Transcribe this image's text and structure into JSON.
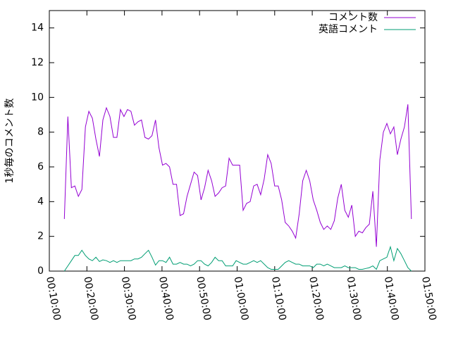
{
  "chart_data": {
    "type": "line",
    "ylabel": "1秒毎のコメント数",
    "xlim": [
      600,
      6600
    ],
    "xticks": [
      {
        "value": 600,
        "label": "00:10:00"
      },
      {
        "value": 1200,
        "label": "00:20:00"
      },
      {
        "value": 1800,
        "label": "00:30:00"
      },
      {
        "value": 2400,
        "label": "00:40:00"
      },
      {
        "value": 3000,
        "label": "00:50:00"
      },
      {
        "value": 3600,
        "label": "01:00:00"
      },
      {
        "value": 4200,
        "label": "01:10:00"
      },
      {
        "value": 4800,
        "label": "01:20:00"
      },
      {
        "value": 5400,
        "label": "01:30:00"
      },
      {
        "value": 6000,
        "label": "01:40:00"
      },
      {
        "value": 6600,
        "label": "01:50:00"
      }
    ],
    "ylim": [
      0,
      15
    ],
    "yticks": [
      0,
      2,
      4,
      6,
      8,
      10,
      12,
      14
    ],
    "legend": "top-right",
    "x": [
      840,
      896,
      952,
      1008,
      1064,
      1120,
      1176,
      1232,
      1288,
      1344,
      1400,
      1456,
      1512,
      1568,
      1624,
      1680,
      1736,
      1792,
      1848,
      1904,
      1960,
      2016,
      2072,
      2128,
      2184,
      2240,
      2296,
      2352,
      2408,
      2464,
      2520,
      2576,
      2632,
      2688,
      2744,
      2800,
      2856,
      2912,
      2968,
      3024,
      3080,
      3136,
      3192,
      3248,
      3304,
      3360,
      3416,
      3472,
      3528,
      3584,
      3640,
      3696,
      3752,
      3808,
      3864,
      3920,
      3976,
      4032,
      4088,
      4144,
      4200,
      4256,
      4312,
      4368,
      4424,
      4480,
      4536,
      4592,
      4648,
      4704,
      4760,
      4816,
      4872,
      4928,
      4984,
      5040,
      5096,
      5152,
      5208,
      5264,
      5320,
      5376,
      5432,
      5488,
      5544,
      5600,
      5656,
      5712,
      5768,
      5824,
      5880,
      5936,
      5992,
      6048,
      6104,
      6160,
      6216,
      6272,
      6328,
      6384
    ],
    "series": [
      {
        "name": "コメント数",
        "color": "#9400d3",
        "values": [
          3.0,
          8.9,
          4.8,
          4.9,
          4.3,
          4.7,
          8.3,
          9.2,
          8.8,
          7.6,
          6.6,
          8.7,
          9.4,
          8.9,
          7.7,
          7.7,
          9.3,
          8.9,
          9.3,
          9.2,
          8.4,
          8.6,
          8.7,
          7.7,
          7.6,
          7.8,
          8.7,
          7.1,
          6.1,
          6.2,
          6.0,
          5.0,
          5.0,
          3.2,
          3.3,
          4.3,
          5.0,
          5.7,
          5.5,
          4.1,
          4.8,
          5.8,
          5.2,
          4.3,
          4.5,
          4.8,
          4.9,
          6.5,
          6.1,
          6.1,
          6.1,
          3.5,
          3.9,
          4.0,
          4.9,
          5.0,
          4.4,
          5.3,
          6.7,
          6.2,
          4.9,
          4.9,
          4.1,
          2.8,
          2.6,
          2.3,
          1.9,
          3.3,
          5.2,
          5.8,
          5.2,
          4.1,
          3.5,
          2.8,
          2.4,
          2.6,
          2.4,
          2.9,
          4.2,
          5.0,
          3.5,
          3.1,
          3.8,
          2.0,
          2.3,
          2.2,
          2.5,
          2.7,
          4.6,
          1.4,
          6.4,
          8.0,
          8.5,
          7.9,
          8.3,
          6.7,
          7.6,
          8.3,
          9.6,
          3.0
        ]
      },
      {
        "name": "英語コメント",
        "color": "#009e73",
        "values": [
          0.0,
          0.3,
          0.6,
          0.9,
          0.9,
          1.2,
          0.9,
          0.7,
          0.6,
          0.8,
          0.55,
          0.65,
          0.6,
          0.5,
          0.6,
          0.5,
          0.6,
          0.6,
          0.6,
          0.6,
          0.7,
          0.7,
          0.8,
          1.0,
          1.2,
          0.8,
          0.35,
          0.6,
          0.6,
          0.5,
          0.8,
          0.4,
          0.4,
          0.5,
          0.4,
          0.4,
          0.3,
          0.4,
          0.6,
          0.6,
          0.4,
          0.3,
          0.5,
          0.8,
          0.6,
          0.6,
          0.3,
          0.3,
          0.3,
          0.6,
          0.5,
          0.4,
          0.4,
          0.5,
          0.6,
          0.5,
          0.6,
          0.4,
          0.2,
          0.1,
          0.1,
          0.1,
          0.3,
          0.5,
          0.6,
          0.5,
          0.4,
          0.4,
          0.3,
          0.3,
          0.3,
          0.2,
          0.4,
          0.4,
          0.3,
          0.4,
          0.3,
          0.2,
          0.2,
          0.2,
          0.3,
          0.2,
          0.2,
          0.2,
          0.1,
          0.1,
          0.15,
          0.2,
          0.3,
          0.1,
          0.6,
          0.7,
          0.8,
          1.4,
          0.6,
          1.3,
          1.0,
          0.6,
          0.2,
          0.0
        ]
      }
    ]
  }
}
